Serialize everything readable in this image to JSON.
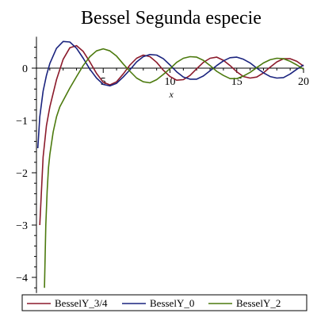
{
  "chart_data": {
    "type": "line",
    "title": "Bessel Segunda especie",
    "xlabel": "x",
    "ylabel": "",
    "xlim": [
      0,
      20
    ],
    "ylim": [
      -4.3,
      0.6
    ],
    "xticks": [
      5,
      10,
      15,
      20
    ],
    "xtick_labels": [
      "5",
      "10",
      "15",
      "20"
    ],
    "yticks": [
      0,
      -1,
      -2,
      -3,
      -4
    ],
    "ytick_labels": [
      "0",
      "−1",
      "−2",
      "−3",
      "−4"
    ],
    "grid": false,
    "legend_position": "bottom",
    "series": [
      {
        "name": "BesselY_3/4",
        "color": "#8b1a2b",
        "x": [
          0.25,
          0.5,
          0.75,
          1,
          1.5,
          2,
          2.5,
          3,
          3.5,
          4,
          4.5,
          5,
          5.5,
          6,
          6.5,
          7,
          7.5,
          8,
          8.5,
          9,
          9.5,
          10,
          10.5,
          11,
          11.5,
          12,
          12.5,
          13,
          13.5,
          14,
          14.5,
          15,
          15.5,
          16,
          16.5,
          17,
          17.5,
          18,
          18.5,
          19,
          19.5,
          20
        ],
        "y": [
          -3.0,
          -1.7,
          -1.1,
          -0.74,
          -0.22,
          0.17,
          0.39,
          0.43,
          0.32,
          0.12,
          -0.1,
          -0.27,
          -0.32,
          -0.26,
          -0.11,
          0.06,
          0.19,
          0.25,
          0.22,
          0.11,
          -0.04,
          -0.16,
          -0.23,
          -0.22,
          -0.14,
          -0.01,
          0.11,
          0.19,
          0.21,
          0.15,
          0.05,
          -0.07,
          -0.16,
          -0.19,
          -0.17,
          -0.09,
          0.02,
          0.12,
          0.18,
          0.18,
          0.13,
          0.04
        ]
      },
      {
        "name": "BesselY_0",
        "color": "#1a237e",
        "x": [
          0.1,
          0.25,
          0.5,
          0.75,
          1,
          1.5,
          2,
          2.5,
          3,
          3.5,
          4,
          4.5,
          5,
          5.5,
          6,
          6.5,
          7,
          7.5,
          8,
          8.5,
          9,
          9.5,
          10,
          10.5,
          11,
          11.5,
          12,
          12.5,
          13,
          13.5,
          14,
          14.5,
          15,
          15.5,
          16,
          16.5,
          17,
          17.5,
          18,
          18.5,
          19,
          19.5,
          20
        ],
        "y": [
          -1.53,
          -0.93,
          -0.44,
          -0.14,
          0.09,
          0.38,
          0.51,
          0.5,
          0.38,
          0.19,
          -0.02,
          -0.19,
          -0.31,
          -0.34,
          -0.29,
          -0.17,
          -0.03,
          0.12,
          0.22,
          0.26,
          0.25,
          0.18,
          0.06,
          -0.07,
          -0.17,
          -0.21,
          -0.21,
          -0.15,
          -0.05,
          0.05,
          0.14,
          0.2,
          0.21,
          0.17,
          0.1,
          0.0,
          -0.09,
          -0.16,
          -0.19,
          -0.18,
          -0.11,
          -0.02,
          0.06
        ]
      },
      {
        "name": "BesselY_2",
        "color": "#4c7a0e",
        "x": [
          0.6,
          0.7,
          0.8,
          0.9,
          1,
          1.25,
          1.5,
          1.75,
          2,
          2.5,
          3,
          3.5,
          4,
          4.5,
          5,
          5.5,
          6,
          6.5,
          7,
          7.5,
          8,
          8.5,
          9,
          9.5,
          10,
          10.5,
          11,
          11.5,
          12,
          12.5,
          13,
          13.5,
          14,
          14.5,
          15,
          15.5,
          16,
          16.5,
          17,
          17.5,
          18,
          18.5,
          19,
          19.5,
          20
        ],
        "y": [
          -4.2,
          -3.0,
          -2.35,
          -1.9,
          -1.65,
          -1.22,
          -0.93,
          -0.74,
          -0.62,
          -0.38,
          -0.16,
          0.05,
          0.22,
          0.33,
          0.37,
          0.33,
          0.23,
          0.08,
          -0.06,
          -0.19,
          -0.26,
          -0.28,
          -0.22,
          -0.12,
          -0.01,
          0.11,
          0.19,
          0.22,
          0.21,
          0.15,
          0.05,
          -0.06,
          -0.14,
          -0.2,
          -0.2,
          -0.15,
          -0.08,
          0.01,
          0.1,
          0.16,
          0.19,
          0.18,
          0.13,
          0.06,
          -0.02
        ]
      }
    ]
  }
}
